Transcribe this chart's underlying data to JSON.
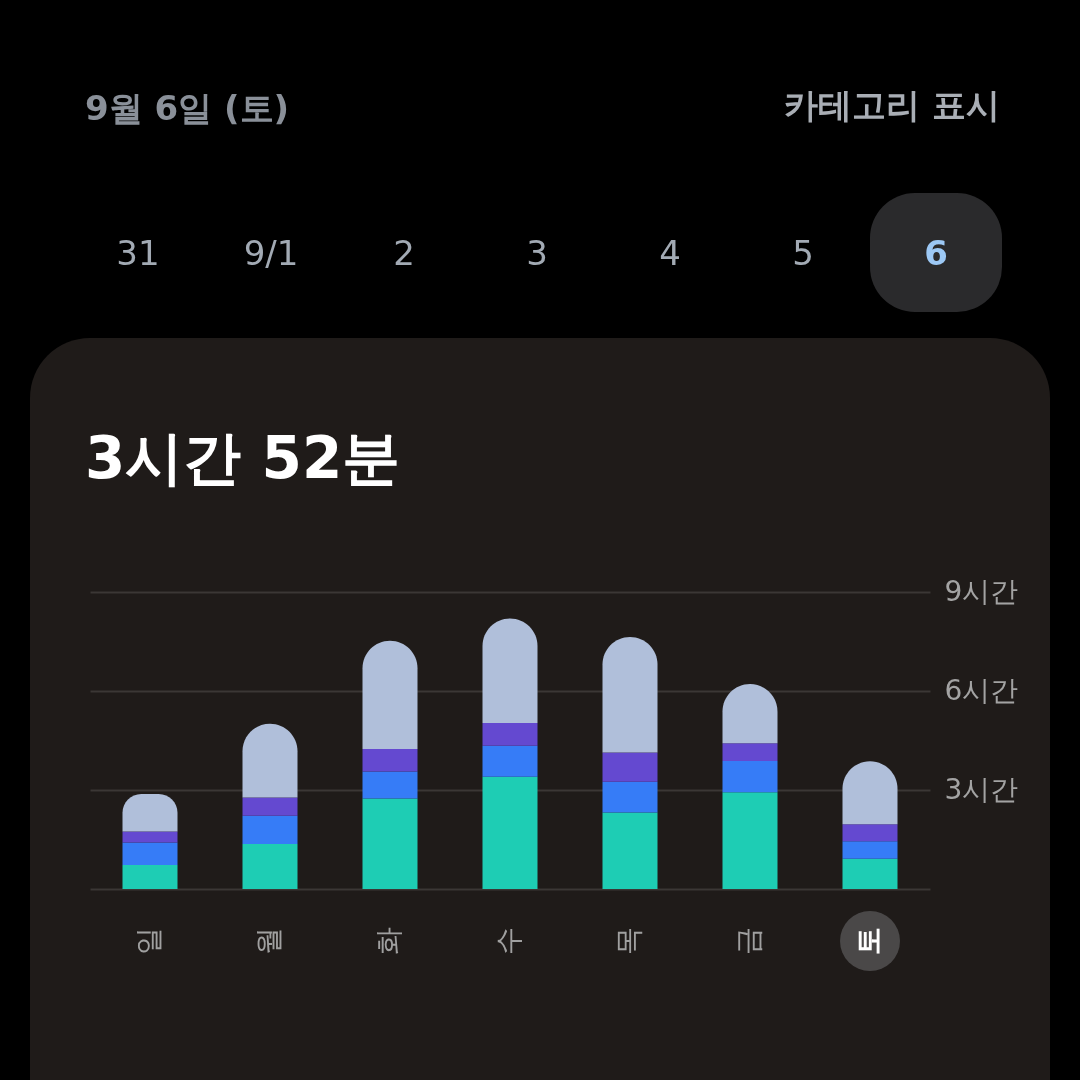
{
  "chart_data": {
    "type": "bar",
    "title": "3시간 52분",
    "annotations": [
      "9월 6일 (토)",
      "카테고리 표시",
      "31",
      "9/1",
      "2",
      "3",
      "4",
      "5",
      "6"
    ],
    "categories": [
      "일",
      "월",
      "화",
      "수",
      "목",
      "금",
      "토"
    ],
    "series": [
      {
        "color": "#1ecdb4",
        "values": [
          0.73,
          1.36,
          2.74,
          3.4,
          2.32,
          2.93,
          0.92
        ]
      },
      {
        "color": "#367cf7",
        "values": [
          0.68,
          0.86,
          0.82,
          0.94,
          0.93,
          0.95,
          0.53
        ]
      },
      {
        "color": "#6449d0",
        "values": [
          0.33,
          0.55,
          0.68,
          0.69,
          0.89,
          0.54,
          0.51
        ]
      },
      {
        "color": "#b0bfda",
        "values": [
          1.14,
          2.24,
          3.28,
          3.17,
          3.5,
          1.79,
          1.91
        ]
      }
    ],
    "stacked": true,
    "ylim": [
      0,
      9
    ],
    "yticks": [
      {
        "value": 0,
        "label": null
      },
      {
        "value": 3,
        "label": "3시간"
      },
      {
        "value": 6,
        "label": "6시간"
      },
      {
        "value": 9,
        "label": "9시간"
      }
    ],
    "grid": "y"
  }
}
